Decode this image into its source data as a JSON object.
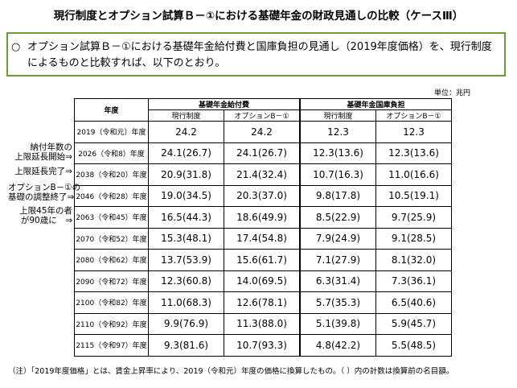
{
  "title": "現行制度とオプション試算Ｂ－①における基礎年金の財政見通しの比較（ケースⅢ）",
  "notice": {
    "bullet": "○",
    "text": "オプション試算Ｂ－①における基礎年金給付費と国庫負担の見通し（2019年度価格）を、現行制度によるものと比較すれば、以下のとおり。"
  },
  "unit": "単位：兆円",
  "table": {
    "year_header": "年度",
    "groups": [
      "基礎年金給付費",
      "基礎年金国庫負担"
    ],
    "subheaders": [
      "現行制度",
      "オプションB－①",
      "現行制度",
      "オプションB－①"
    ],
    "rows": [
      [
        "2019（令和元）年度",
        "24.2",
        "24.2",
        "12.3",
        "12.3"
      ],
      [
        "2026（令和8）年度",
        "24.1(26.7)",
        "24.1(26.7)",
        "12.3(13.6)",
        "12.3(13.6)"
      ],
      [
        "2038（令和20）年度",
        "20.9(31.8)",
        "21.4(32.4)",
        "10.7(16.3)",
        "11.0(16.6)"
      ],
      [
        "2046（令和28）年度",
        "19.0(34.5)",
        "20.3(37.0)",
        "9.8(17.8)",
        "10.5(19.1)"
      ],
      [
        "2063（令和45）年度",
        "16.5(44.3)",
        "18.6(49.9)",
        "8.5(22.9)",
        "9.7(25.9)"
      ],
      [
        "2070（令和52）年度",
        "15.3(48.1)",
        "17.4(54.8)",
        "7.9(24.9)",
        "9.1(28.5)"
      ],
      [
        "2080（令和62）年度",
        "13.7(53.9)",
        "15.6(61.7)",
        "7.1(27.9)",
        "8.1(32.0)"
      ],
      [
        "2090（令和72）年度",
        "12.3(60.8)",
        "14.0(69.5)",
        "6.3(31.4)",
        "7.3(36.1)"
      ],
      [
        "2100（令和82）年度",
        "11.0(68.3)",
        "12.6(78.1)",
        "5.7(35.3)",
        "6.5(40.6)"
      ],
      [
        "2110（令和92）年度",
        "9.9(76.9)",
        "11.3(88.0)",
        "5.1(39.8)",
        "5.9(45.7)"
      ],
      [
        "2115（令和97）年度",
        "9.3(81.6)",
        "10.7(93.3)",
        "4.8(42.2)",
        "5.5(48.5)"
      ]
    ]
  },
  "annotations": [
    [
      "納付年数の",
      "上限延長開始⇒"
    ],
    [
      "上限延長完了⇒"
    ],
    [
      "オプションB－①の",
      "基礎の調整終了⇒"
    ],
    [
      "上限45年の者",
      "が90歳に　⇒"
    ]
  ],
  "note": "（注）「2019年度価格」とは、賃金上昇率により、2019（令和元）年度の価格に換算したもの。（ ）内の計数は換算前の名目額。"
}
